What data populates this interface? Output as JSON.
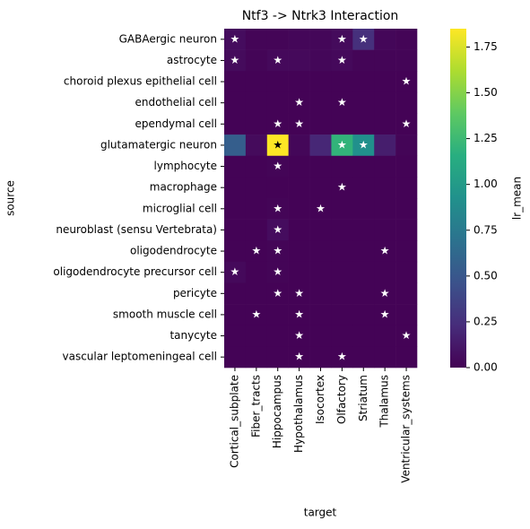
{
  "chart_data": {
    "type": "heatmap",
    "title": "Ntf3 -> Ntrk3 Interaction",
    "x_label": "target",
    "y_label": "source",
    "colorbar_label": "lr_mean",
    "colormap": "viridis",
    "x_categories": [
      "Cortical_subplate",
      "Fiber_tracts",
      "Hippocampus",
      "Hypothalamus",
      "Isocortex",
      "Olfactory",
      "Striatum",
      "Thalamus",
      "Ventricular_systems"
    ],
    "y_categories": [
      "GABAergic neuron",
      "astrocyte",
      "choroid plexus epithelial cell",
      "endothelial cell",
      "ependymal cell",
      "glutamatergic neuron",
      "lymphocyte",
      "macrophage",
      "microglial cell",
      "neuroblast (sensu Vertebrata)",
      "oligodendrocyte",
      "oligodendrocyte precursor cell",
      "pericyte",
      "smooth muscle cell",
      "tanycyte",
      "vascular leptomeningeal cell"
    ],
    "values": [
      [
        0.06,
        0.02,
        0.02,
        0.03,
        0.03,
        0.05,
        0.25,
        0.03,
        0.02
      ],
      [
        0.05,
        0.02,
        0.04,
        0.04,
        0.03,
        0.04,
        0.02,
        0.02,
        0.02
      ],
      [
        0.01,
        0.01,
        0.01,
        0.01,
        0.01,
        0.01,
        0.01,
        0.01,
        0.01
      ],
      [
        0.01,
        0.01,
        0.01,
        0.01,
        0.01,
        0.01,
        0.01,
        0.01,
        0.01
      ],
      [
        0.01,
        0.01,
        0.01,
        0.01,
        0.01,
        0.01,
        0.01,
        0.01,
        0.01
      ],
      [
        0.55,
        0.05,
        1.85,
        0.03,
        0.2,
        1.2,
        0.92,
        0.15,
        0.02
      ],
      [
        0.01,
        0.01,
        0.02,
        0.01,
        0.01,
        0.01,
        0.01,
        0.01,
        0.01
      ],
      [
        0.01,
        0.01,
        0.01,
        0.01,
        0.01,
        0.01,
        0.01,
        0.01,
        0.01
      ],
      [
        0.01,
        0.01,
        0.02,
        0.01,
        0.01,
        0.01,
        0.01,
        0.01,
        0.01
      ],
      [
        0.01,
        0.01,
        0.06,
        0.01,
        0.01,
        0.01,
        0.01,
        0.01,
        0.01
      ],
      [
        0.01,
        0.01,
        0.02,
        0.01,
        0.01,
        0.01,
        0.01,
        0.01,
        0.01
      ],
      [
        0.04,
        0.01,
        0.02,
        0.01,
        0.01,
        0.01,
        0.01,
        0.01,
        0.01
      ],
      [
        0.01,
        0.01,
        0.01,
        0.01,
        0.01,
        0.01,
        0.01,
        0.01,
        0.01
      ],
      [
        0.01,
        0.01,
        0.01,
        0.01,
        0.01,
        0.01,
        0.01,
        0.01,
        0.01
      ],
      [
        0.01,
        0.01,
        0.01,
        0.01,
        0.01,
        0.01,
        0.01,
        0.01,
        0.01
      ],
      [
        0.01,
        0.01,
        0.01,
        0.01,
        0.01,
        0.01,
        0.01,
        0.01,
        0.01
      ]
    ],
    "annotations": [
      [
        "★",
        null,
        null,
        null,
        null,
        "★",
        "★",
        null,
        null
      ],
      [
        "★",
        null,
        "★",
        null,
        null,
        "★",
        null,
        null,
        null
      ],
      [
        null,
        null,
        null,
        null,
        null,
        null,
        null,
        null,
        "★"
      ],
      [
        null,
        null,
        null,
        "★",
        null,
        "★",
        null,
        null,
        null
      ],
      [
        null,
        null,
        "★",
        "★",
        null,
        null,
        null,
        null,
        "★"
      ],
      [
        null,
        null,
        "★",
        null,
        null,
        "★",
        "★",
        null,
        null
      ],
      [
        null,
        null,
        "★",
        null,
        null,
        null,
        null,
        null,
        null
      ],
      [
        null,
        null,
        null,
        null,
        null,
        "★",
        null,
        null,
        null
      ],
      [
        null,
        null,
        "★",
        null,
        "★",
        null,
        null,
        null,
        null
      ],
      [
        null,
        null,
        "★",
        null,
        null,
        null,
        null,
        null,
        null
      ],
      [
        null,
        "★",
        "★",
        null,
        null,
        null,
        null,
        "★",
        null
      ],
      [
        "★",
        null,
        "★",
        null,
        null,
        null,
        null,
        null,
        null
      ],
      [
        null,
        null,
        "★",
        "★",
        null,
        null,
        null,
        "★",
        null
      ],
      [
        null,
        "★",
        null,
        "★",
        null,
        null,
        null,
        "★",
        null
      ],
      [
        null,
        null,
        null,
        "★",
        null,
        null,
        null,
        null,
        "★"
      ],
      [
        null,
        null,
        null,
        "★",
        null,
        "★",
        null,
        null,
        null
      ]
    ],
    "clim": [
      0,
      1.85
    ],
    "cticks": [
      {
        "value": 0,
        "label": "0.00"
      },
      {
        "value": 0.25,
        "label": "0.25"
      },
      {
        "value": 0.5,
        "label": "0.50"
      },
      {
        "value": 0.75,
        "label": "0.75"
      },
      {
        "value": 1,
        "label": "1.00"
      },
      {
        "value": 1.25,
        "label": "1.25"
      },
      {
        "value": 1.5,
        "label": "1.50"
      },
      {
        "value": 1.75,
        "label": "1.75"
      }
    ]
  }
}
